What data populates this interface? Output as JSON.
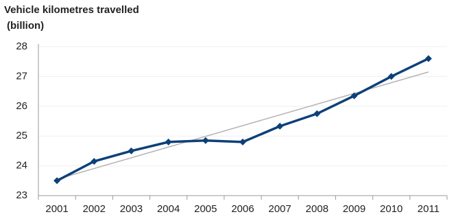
{
  "chart_data": {
    "type": "line",
    "title": "Vehicle kilometres travelled",
    "subtitle": "(billion)",
    "categories": [
      "2001",
      "2002",
      "2003",
      "2004",
      "2005",
      "2006",
      "2007",
      "2008",
      "2009",
      "2010",
      "2011"
    ],
    "series": [
      {
        "color": "#0d4079",
        "values": [
          23.5,
          24.15,
          24.5,
          24.8,
          24.85,
          24.8,
          25.33,
          25.75,
          26.35,
          27.0,
          27.6
        ]
      }
    ],
    "trendline": {
      "color": "#b3b3b3",
      "values": [
        23.55,
        27.15
      ]
    },
    "ylim": [
      23,
      28
    ],
    "yticks": [
      23,
      24,
      25,
      26,
      27,
      28
    ],
    "grid": true
  }
}
